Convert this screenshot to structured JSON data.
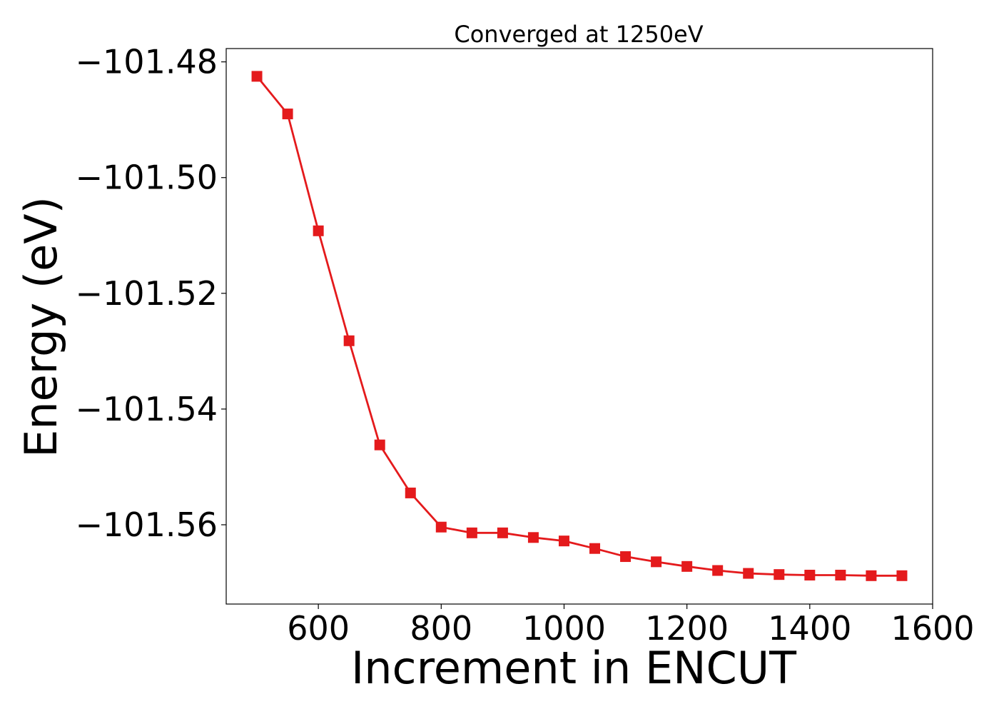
{
  "chart_data": {
    "type": "line",
    "title": "Converged at 1250eV",
    "xlabel": "Increment in ENCUT",
    "ylabel": "Energy (eV)",
    "xlim": [
      450,
      1600
    ],
    "ylim": [
      -101.5737,
      -101.4777
    ],
    "xticks": [
      600,
      800,
      1000,
      1200,
      1400,
      1600
    ],
    "yticks": [
      -101.48,
      -101.5,
      -101.52,
      -101.54,
      -101.56
    ],
    "ytick_labels": [
      "−101.48",
      "−101.50",
      "−101.52",
      "−101.54",
      "−101.56"
    ],
    "grid": false,
    "series": [
      {
        "color": "#e41a1c",
        "marker": "square",
        "x": [
          500,
          550,
          600,
          650,
          700,
          750,
          800,
          850,
          900,
          950,
          1000,
          1050,
          1100,
          1150,
          1200,
          1250,
          1300,
          1350,
          1400,
          1450,
          1500,
          1550
        ],
        "y": [
          -101.4825,
          -101.489,
          -101.5092,
          -101.5282,
          -101.5462,
          -101.5545,
          -101.5604,
          -101.5614,
          -101.5614,
          -101.5622,
          -101.5628,
          -101.5641,
          -101.5655,
          -101.5664,
          -101.5672,
          -101.5679,
          -101.5684,
          -101.5686,
          -101.5687,
          -101.5687,
          -101.5688,
          -101.5688
        ]
      }
    ]
  }
}
